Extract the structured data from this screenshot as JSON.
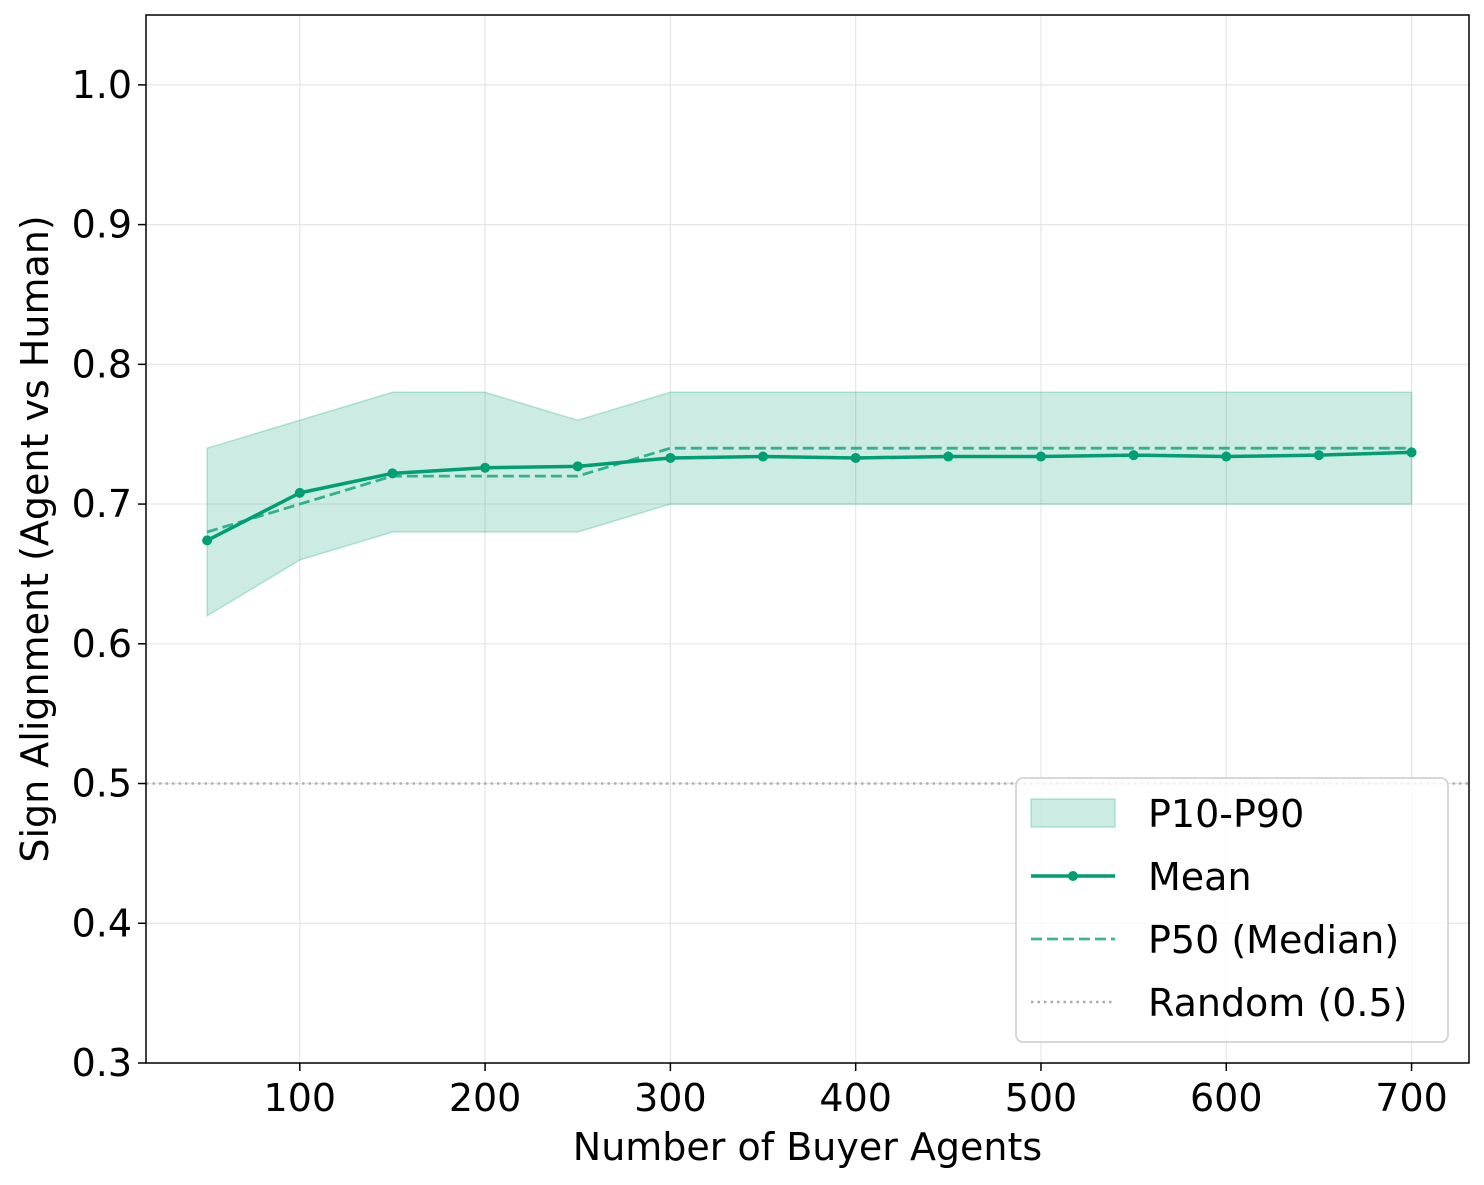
{
  "chart_data": {
    "type": "line",
    "title": "",
    "xlabel": "Number of Buyer Agents",
    "ylabel": "Sign Alignment (Agent vs Human)",
    "x": [
      50,
      100,
      150,
      200,
      250,
      300,
      350,
      400,
      450,
      500,
      550,
      600,
      650,
      700
    ],
    "xlim": [
      17,
      731
    ],
    "ylim": [
      0.3,
      1.05
    ],
    "xticks": [
      100,
      200,
      300,
      400,
      500,
      600,
      700
    ],
    "xtick_labels": [
      "100",
      "200",
      "300",
      "400",
      "500",
      "600",
      "700"
    ],
    "yticks": [
      0.3,
      0.4,
      0.5,
      0.6,
      0.7,
      0.8,
      0.9,
      1.0
    ],
    "ytick_labels": [
      "0.3",
      "0.4",
      "0.5",
      "0.6",
      "0.7",
      "0.8",
      "0.9",
      "1.0"
    ],
    "grid": true,
    "legend_position": "bottom-right",
    "series": [
      {
        "name": "P10-P90",
        "kind": "band",
        "color": "#009E73",
        "lower": [
          0.62,
          0.66,
          0.68,
          0.68,
          0.68,
          0.7,
          0.7,
          0.7,
          0.7,
          0.7,
          0.7,
          0.7,
          0.7,
          0.7
        ],
        "upper": [
          0.74,
          0.76,
          0.78,
          0.78,
          0.76,
          0.78,
          0.78,
          0.78,
          0.78,
          0.78,
          0.78,
          0.78,
          0.78,
          0.78
        ]
      },
      {
        "name": "Mean",
        "kind": "line-markers",
        "color": "#009E73",
        "values": [
          0.674,
          0.708,
          0.722,
          0.726,
          0.727,
          0.733,
          0.734,
          0.733,
          0.734,
          0.734,
          0.735,
          0.734,
          0.735,
          0.737
        ]
      },
      {
        "name": "P50 (Median)",
        "kind": "dashed-line",
        "color": "#009E73",
        "values": [
          0.68,
          0.7,
          0.72,
          0.72,
          0.72,
          0.74,
          0.74,
          0.74,
          0.74,
          0.74,
          0.74,
          0.74,
          0.74,
          0.74
        ]
      },
      {
        "name": "Random (0.5)",
        "kind": "dotted-hline",
        "color": "#aaaaaa",
        "value": 0.5
      }
    ]
  }
}
